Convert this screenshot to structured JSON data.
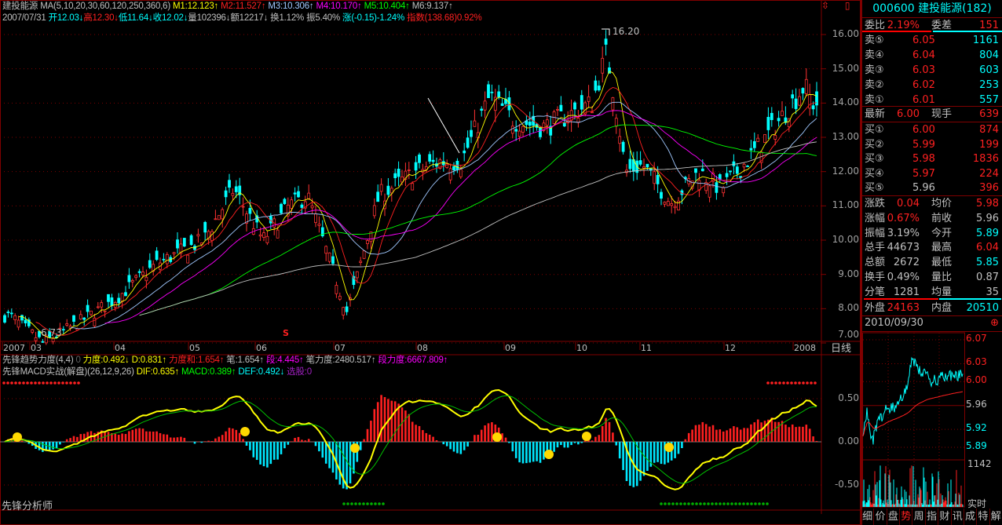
{
  "header": {
    "name": "建投能源",
    "ma_def": "MA(5,10,20,30,60,120,250,360,6)",
    "m1": "M1:12.123",
    "m2": "M2:11.527",
    "m3": "M3:10.306",
    "m4": "M4:10.170",
    "m5": "M5:10.404",
    "m6": "M6:9.137",
    "date": "2007/07/31",
    "open": "开12.03",
    "high": "高12.30",
    "low": "低11.64",
    "close": "收12.02",
    "vol": "量102396",
    "amt": "额12217",
    "turn": "换1.12%",
    "amp": "振5.40%",
    "chg": "涨(-0.15)-1.24%",
    "index": "指数(138.68)0.92%"
  },
  "chart_annotations": {
    "high_label": "16.20",
    "low_label": "6.73",
    "s_marker": "S"
  },
  "price_axis": [
    "16.00",
    "15.00",
    "14.00",
    "13.00",
    "12.00",
    "11.00",
    "10.00",
    "9.00",
    "8.00",
    "7.00"
  ],
  "date_axis": [
    "2007",
    "03",
    "04",
    "05",
    "06",
    "07",
    "08",
    "09",
    "10",
    "11",
    "12",
    "2008"
  ],
  "period_label": "日线",
  "indicator1": {
    "name": "先锋趋势力度(4,4)",
    "zero": "0",
    "lidu": "力度:0.492",
    "d": "D:0.831",
    "lidu_sum": "力度和:1.654",
    "bi": "笔:1.654",
    "duan": "段:4.445",
    "bi_lidu": "笔力度:2480.517",
    "duan_lidu": "段力度:6667.809"
  },
  "indicator2": {
    "name": "先锋MACD实战(解盘)(26,12,9,26)",
    "dif": "DIF:0.635",
    "macd": "MACD:0.389",
    "def": "DEF:0.492",
    "xuangu": "选股:0"
  },
  "macd_axis": [
    "0.50",
    "0.00",
    "-0.50"
  ],
  "footer_label": "先锋分析师",
  "chart_data": {
    "type": "candlestick",
    "approx_closes": [
      [
        "2007-02-22",
        7.8
      ],
      [
        "2007-03-06",
        7.0
      ],
      [
        "2007-03-19",
        7.6
      ],
      [
        "2007-04-02",
        8.3
      ],
      [
        "2007-04-18",
        9.3
      ],
      [
        "2007-05-08",
        10.0
      ],
      [
        "2007-05-22",
        11.5
      ],
      [
        "2007-06-04",
        10.0
      ],
      [
        "2007-06-14",
        11.0
      ],
      [
        "2007-06-21",
        11.3
      ],
      [
        "2007-06-29",
        9.5
      ],
      [
        "2007-07-06",
        7.9
      ],
      [
        "2007-07-10",
        9.0
      ],
      [
        "2007-07-18",
        11.3
      ],
      [
        "2007-08-01",
        12.0
      ],
      [
        "2007-08-09",
        12.3
      ],
      [
        "2007-08-17",
        12.3
      ],
      [
        "2007-08-27",
        14.2
      ],
      [
        "2007-09-05",
        13.5
      ],
      [
        "2007-09-18",
        13.3
      ],
      [
        "2007-10-09",
        14.0
      ],
      [
        "2007-10-16",
        15.5
      ],
      [
        "2007-10-22",
        13.3
      ],
      [
        "2007-10-25",
        12.0
      ],
      [
        "2007-11-02",
        12.2
      ],
      [
        "2007-11-12",
        11.1
      ],
      [
        "2007-11-22",
        12.0
      ],
      [
        "2007-11-30",
        11.5
      ],
      [
        "2007-12-12",
        12.3
      ],
      [
        "2007-12-28",
        13.5
      ],
      [
        "2008-01-07",
        14.5
      ],
      [
        "2008-01-10",
        14.0
      ]
    ],
    "ylim": [
      6.5,
      16.5
    ],
    "macd_ylim": [
      -0.65,
      0.65
    ],
    "ma_colors": [
      "#ffff00",
      "#ff2020",
      "#a0c8ff",
      "#ff00ff",
      "#00ff00",
      "#c0c0c0"
    ]
  },
  "quote": {
    "title": "000600 建投能源(182)",
    "weibi_label": "委比",
    "weibi": "2.19%",
    "weicha_label": "委差",
    "weicha": "151",
    "asks": [
      {
        "label": "卖⑤",
        "price": "6.05",
        "vol": "1161"
      },
      {
        "label": "卖④",
        "price": "6.04",
        "vol": "804"
      },
      {
        "label": "卖③",
        "price": "6.03",
        "vol": "603"
      },
      {
        "label": "卖②",
        "price": "6.02",
        "vol": "253"
      },
      {
        "label": "卖①",
        "price": "6.01",
        "vol": "557"
      }
    ],
    "last_label": "最新",
    "last": "6.00",
    "xianshou_label": "现手",
    "xianshou": "639",
    "bids": [
      {
        "label": "买①",
        "price": "6.00",
        "vol": "874"
      },
      {
        "label": "买②",
        "price": "5.99",
        "vol": "199"
      },
      {
        "label": "买③",
        "price": "5.98",
        "vol": "1836"
      },
      {
        "label": "买④",
        "price": "5.97",
        "vol": "224"
      },
      {
        "label": "买⑤",
        "price": "5.96",
        "vol": "396"
      }
    ],
    "stats": [
      {
        "l1": "涨跌",
        "v1": "0.04",
        "c1": "#ff2020",
        "l2": "均价",
        "v2": "5.98",
        "c2": "#ff2020"
      },
      {
        "l1": "涨幅",
        "v1": "0.67%",
        "c1": "#ff2020",
        "l2": "前收",
        "v2": "5.96",
        "c2": "#c0c0c0"
      },
      {
        "l1": "振幅",
        "v1": "3.19%",
        "c1": "#c0c0c0",
        "l2": "今开",
        "v2": "5.89",
        "c2": "#00ffff"
      },
      {
        "l1": "总手",
        "v1": "44673",
        "c1": "#c0c0c0",
        "l2": "最高",
        "v2": "6.04",
        "c2": "#ff2020"
      },
      {
        "l1": "总额",
        "v1": "2672",
        "c1": "#c0c0c0",
        "l2": "最低",
        "v2": "5.85",
        "c2": "#00ffff"
      },
      {
        "l1": "换手",
        "v1": "0.49%",
        "c1": "#c0c0c0",
        "l2": "量比",
        "v2": "0.87",
        "c2": "#c0c0c0"
      },
      {
        "l1": "分笔",
        "v1": "1281",
        "c1": "#c0c0c0",
        "l2": "均量",
        "v2": "35",
        "c2": "#c0c0c0"
      }
    ],
    "outer_label": "外盘",
    "outer": "24163",
    "inner_label": "内盘",
    "inner": "20510",
    "date": "2010/09/30"
  },
  "mini_chart": {
    "price_axis": [
      "6.07",
      "6.03",
      "6.00",
      "5.96",
      "5.92",
      "5.89"
    ],
    "vol_max": "1142",
    "realtime_label": "实时",
    "prev_close": 5.96
  },
  "tabs": [
    "细",
    "价",
    "盘",
    "势",
    "周",
    "指",
    "财",
    "讯",
    "成",
    "特",
    "解"
  ],
  "active_tab": "势"
}
